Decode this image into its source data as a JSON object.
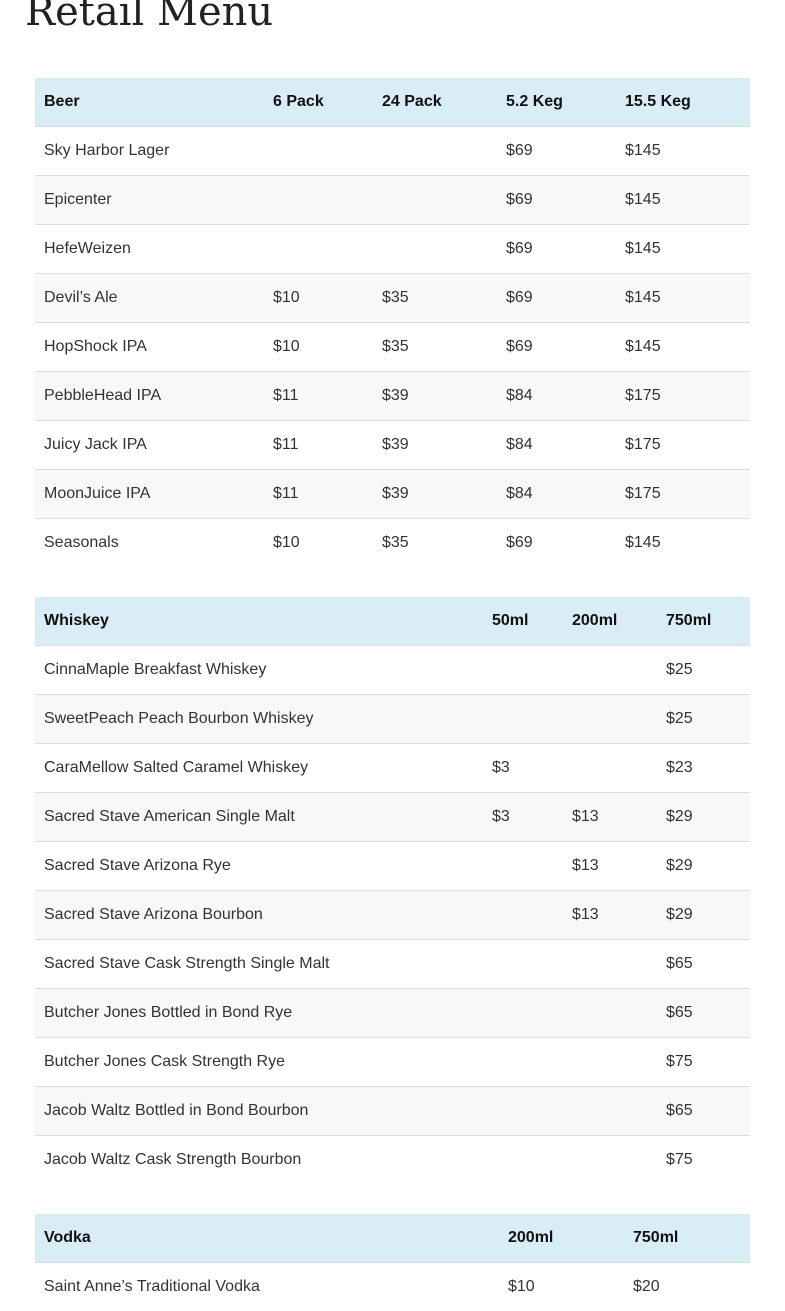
{
  "page": {
    "title": "Retail Menu"
  },
  "beer": {
    "headers": [
      "Beer",
      "6 Pack",
      "24 Pack",
      "5.2 Keg",
      "15.5 Keg"
    ],
    "rows": [
      [
        "Sky Harbor Lager",
        "",
        "",
        "$69",
        "$145"
      ],
      [
        "Epicenter",
        "",
        "",
        "$69",
        "$145"
      ],
      [
        "HefeWeizen",
        "",
        "",
        "$69",
        "$145"
      ],
      [
        "Devil’s Ale",
        "$10",
        "$35",
        "$69",
        "$145"
      ],
      [
        "HopShock IPA",
        "$10",
        "$35",
        "$69",
        "$145"
      ],
      [
        "PebbleHead IPA",
        "$11",
        "$39",
        "$84",
        "$175"
      ],
      [
        "Juicy Jack IPA",
        "$11",
        "$39",
        "$84",
        "$175"
      ],
      [
        "MoonJuice IPA",
        "$11",
        "$39",
        "$84",
        "$175"
      ],
      [
        "Seasonals",
        "$10",
        "$35",
        "$69",
        "$145"
      ]
    ]
  },
  "whiskey": {
    "headers": [
      "Whiskey",
      "50ml",
      "200ml",
      "750ml"
    ],
    "rows": [
      [
        "CinnaMaple Breakfast Whiskey",
        "",
        "",
        "$25"
      ],
      [
        "SweetPeach Peach Bourbon Whiskey",
        "",
        "",
        "$25"
      ],
      [
        "CaraMellow Salted Caramel Whiskey",
        "$3",
        "",
        "$23"
      ],
      [
        "Sacred Stave American Single Malt",
        "$3",
        "$13",
        "$29"
      ],
      [
        "Sacred Stave Arizona Rye",
        "",
        "$13",
        "$29"
      ],
      [
        "Sacred Stave Arizona Bourbon",
        "",
        "$13",
        "$29"
      ],
      [
        "Sacred Stave Cask Strength Single Malt",
        "",
        "",
        "$65"
      ],
      [
        "Butcher Jones Bottled in Bond Rye",
        "",
        "",
        "$65"
      ],
      [
        "Butcher Jones Cask Strength Rye",
        "",
        "",
        "$75"
      ],
      [
        "Jacob Waltz Bottled in Bond Bourbon",
        "",
        "",
        "$65"
      ],
      [
        "Jacob Waltz Cask Strength Bourbon",
        "",
        "",
        "$75"
      ]
    ]
  },
  "vodka": {
    "headers": [
      "Vodka",
      "200ml",
      "750ml"
    ],
    "rows": [
      [
        "Saint Anne’s Traditional Vodka",
        "$10",
        "$20"
      ]
    ]
  },
  "colors": {
    "header_bg": "#d9edf7",
    "stripe_bg": "#f8f8f8",
    "row_border": "#dddddd"
  }
}
